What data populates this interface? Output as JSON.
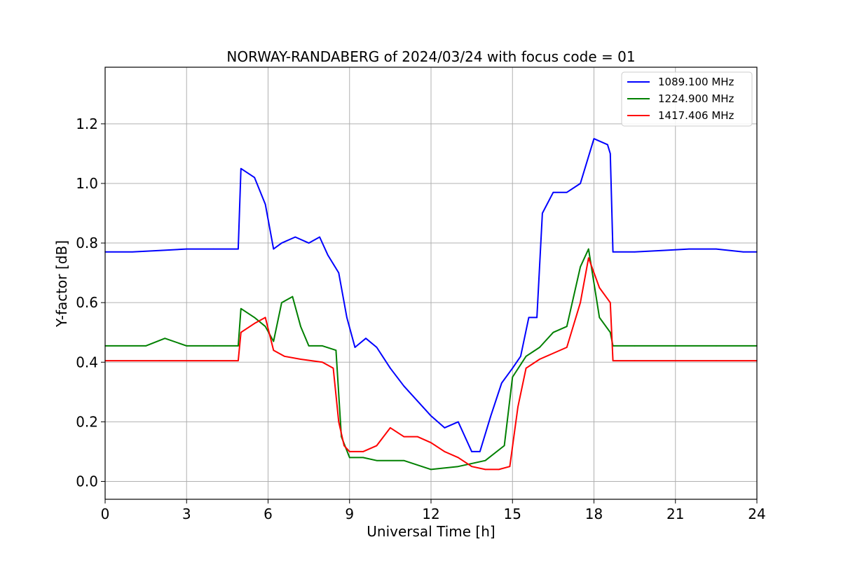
{
  "chart_data": {
    "type": "line",
    "title": "NORWAY-RANDABERG of 2024/03/24 with focus code = 01",
    "xlabel": "Universal Time [h]",
    "ylabel": "Y-factor [dB]",
    "xlim": [
      0,
      24
    ],
    "ylim": [
      -0.06,
      1.39
    ],
    "xticks": [
      0,
      3,
      6,
      9,
      12,
      15,
      18,
      21,
      24
    ],
    "yticks": [
      0.0,
      0.2,
      0.4,
      0.6,
      0.8,
      1.0,
      1.2
    ],
    "ytick_labels": [
      "0.0",
      "0.2",
      "0.4",
      "0.6",
      "0.8",
      "1.0",
      "1.2"
    ],
    "grid": true,
    "legend_position": "top-right",
    "series": [
      {
        "name": "1089.100 MHz",
        "color": "#0000ff",
        "x": [
          0,
          1,
          2,
          3,
          4,
          4.9,
          5.0,
          5.5,
          5.9,
          6.2,
          6.5,
          7.0,
          7.5,
          7.9,
          8.2,
          8.6,
          8.9,
          9.2,
          9.6,
          10.0,
          10.5,
          11.0,
          11.5,
          12.0,
          12.5,
          13.0,
          13.5,
          13.8,
          14.2,
          14.6,
          15.0,
          15.3,
          15.6,
          15.9,
          16.1,
          16.5,
          17.0,
          17.5,
          18.0,
          18.5,
          18.6,
          18.7,
          19.5,
          20.5,
          21.5,
          22.5,
          23.5,
          24
        ],
        "y": [
          0.77,
          0.77,
          0.775,
          0.78,
          0.78,
          0.78,
          1.05,
          1.02,
          0.93,
          0.78,
          0.8,
          0.82,
          0.8,
          0.82,
          0.76,
          0.7,
          0.55,
          0.45,
          0.48,
          0.45,
          0.38,
          0.32,
          0.27,
          0.22,
          0.18,
          0.2,
          0.1,
          0.1,
          0.22,
          0.33,
          0.38,
          0.42,
          0.55,
          0.55,
          0.9,
          0.97,
          0.97,
          1.0,
          1.15,
          1.13,
          1.1,
          0.77,
          0.77,
          0.775,
          0.78,
          0.78,
          0.77,
          0.77
        ]
      },
      {
        "name": "1224.900 MHz",
        "color": "#008000",
        "x": [
          0,
          1.5,
          2.2,
          3,
          4,
          4.9,
          5.0,
          5.5,
          5.9,
          6.2,
          6.5,
          6.9,
          7.2,
          7.5,
          8.0,
          8.5,
          8.7,
          9.0,
          9.5,
          10.0,
          11.0,
          12.0,
          13.0,
          14.0,
          14.7,
          15.0,
          15.5,
          16.0,
          16.5,
          17.0,
          17.5,
          17.8,
          18.2,
          18.6,
          18.7,
          19.5,
          21,
          22.5,
          24
        ],
        "y": [
          0.455,
          0.455,
          0.48,
          0.455,
          0.455,
          0.455,
          0.58,
          0.55,
          0.52,
          0.47,
          0.6,
          0.62,
          0.52,
          0.455,
          0.455,
          0.44,
          0.15,
          0.08,
          0.08,
          0.07,
          0.07,
          0.04,
          0.05,
          0.07,
          0.12,
          0.35,
          0.42,
          0.45,
          0.5,
          0.52,
          0.72,
          0.78,
          0.55,
          0.5,
          0.455,
          0.455,
          0.455,
          0.455,
          0.455
        ]
      },
      {
        "name": "1417.406 MHz",
        "color": "#ff0000",
        "x": [
          0,
          2,
          3.9,
          4,
          4.9,
          5.0,
          5.5,
          5.9,
          6.2,
          6.6,
          7.2,
          8.0,
          8.4,
          8.6,
          8.8,
          9.0,
          9.5,
          10.0,
          10.5,
          11.0,
          11.5,
          12.0,
          12.5,
          13.0,
          13.5,
          14.0,
          14.5,
          14.9,
          15.2,
          15.5,
          16.0,
          16.5,
          17.0,
          17.5,
          17.8,
          18.2,
          18.6,
          18.7,
          19.5,
          21,
          22.5,
          24
        ],
        "y": [
          0.405,
          0.405,
          0.405,
          0.405,
          0.405,
          0.5,
          0.53,
          0.55,
          0.44,
          0.42,
          0.41,
          0.4,
          0.38,
          0.2,
          0.12,
          0.1,
          0.1,
          0.12,
          0.18,
          0.15,
          0.15,
          0.13,
          0.1,
          0.08,
          0.05,
          0.04,
          0.04,
          0.05,
          0.25,
          0.38,
          0.41,
          0.43,
          0.45,
          0.6,
          0.75,
          0.65,
          0.6,
          0.405,
          0.405,
          0.405,
          0.405,
          0.405
        ]
      }
    ]
  }
}
